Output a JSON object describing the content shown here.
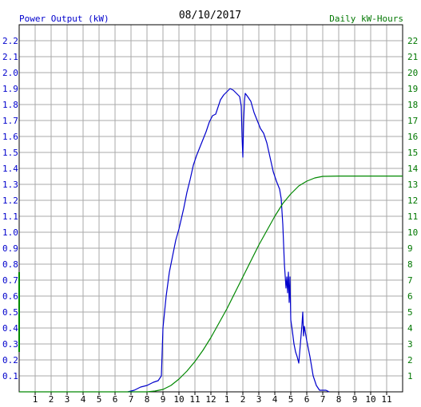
{
  "chart_data": {
    "type": "line",
    "title": "08/10/2017",
    "ylabel_left": "Power Output (kW)",
    "ylabel_right": "Daily kW-Hours",
    "xlabel": "",
    "grid": true,
    "colors": {
      "left_axis": "#0000cc",
      "right_axis": "#007700",
      "power_line": "#0000cc",
      "energy_line": "#008800",
      "grid": "#aaaaaa",
      "frame": "#000000"
    },
    "x_ticks": [
      "1",
      "2",
      "3",
      "4",
      "5",
      "6",
      "7",
      "8",
      "9",
      "10",
      "11",
      "12",
      "1",
      "2",
      "3",
      "4",
      "5",
      "6",
      "7",
      "8",
      "9",
      "10",
      "11"
    ],
    "x_range_hours": [
      0,
      24
    ],
    "ylim_left": [
      0,
      2.3
    ],
    "ylim_right": [
      0,
      23
    ],
    "y_ticks_left": [
      "0.1",
      "0.2",
      "0.3",
      "0.4",
      "0.5",
      "0.6",
      "0.7",
      "0.8",
      "0.9",
      "1.0",
      "1.1",
      "1.2",
      "1.3",
      "1.4",
      "1.5",
      "1.6",
      "1.7",
      "1.8",
      "1.9",
      "2.0",
      "2.1",
      "2.2"
    ],
    "y_ticks_right": [
      "1",
      "2",
      "3",
      "4",
      "5",
      "6",
      "7",
      "8",
      "9",
      "10",
      "11",
      "12",
      "13",
      "14",
      "15",
      "16",
      "17",
      "18",
      "19",
      "20",
      "21",
      "22"
    ],
    "series": [
      {
        "axis": "left",
        "points": [
          [
            6.8,
            0
          ],
          [
            7.2,
            0.01
          ],
          [
            7.6,
            0.03
          ],
          [
            8.0,
            0.04
          ],
          [
            8.4,
            0.06
          ],
          [
            8.7,
            0.07
          ],
          [
            8.9,
            0.1
          ],
          [
            9.0,
            0.4
          ],
          [
            9.2,
            0.6
          ],
          [
            9.4,
            0.75
          ],
          [
            9.6,
            0.85
          ],
          [
            9.8,
            0.95
          ],
          [
            10.0,
            1.02
          ],
          [
            10.3,
            1.15
          ],
          [
            10.5,
            1.25
          ],
          [
            10.7,
            1.33
          ],
          [
            10.9,
            1.42
          ],
          [
            11.1,
            1.48
          ],
          [
            11.3,
            1.53
          ],
          [
            11.5,
            1.58
          ],
          [
            11.7,
            1.63
          ],
          [
            11.9,
            1.69
          ],
          [
            12.1,
            1.73
          ],
          [
            12.3,
            1.74
          ],
          [
            12.4,
            1.77
          ],
          [
            12.6,
            1.83
          ],
          [
            12.8,
            1.86
          ],
          [
            13.0,
            1.88
          ],
          [
            13.2,
            1.9
          ],
          [
            13.4,
            1.89
          ],
          [
            13.6,
            1.87
          ],
          [
            13.8,
            1.85
          ],
          [
            13.9,
            1.79
          ],
          [
            13.95,
            1.6
          ],
          [
            14.0,
            1.47
          ],
          [
            14.05,
            1.7
          ],
          [
            14.1,
            1.82
          ],
          [
            14.15,
            1.87
          ],
          [
            14.3,
            1.85
          ],
          [
            14.5,
            1.82
          ],
          [
            14.7,
            1.75
          ],
          [
            14.9,
            1.7
          ],
          [
            15.1,
            1.65
          ],
          [
            15.3,
            1.62
          ],
          [
            15.5,
            1.56
          ],
          [
            15.7,
            1.47
          ],
          [
            15.9,
            1.38
          ],
          [
            16.1,
            1.32
          ],
          [
            16.3,
            1.27
          ],
          [
            16.4,
            1.21
          ],
          [
            16.5,
            1.05
          ],
          [
            16.6,
            0.8
          ],
          [
            16.7,
            0.65
          ],
          [
            16.75,
            0.72
          ],
          [
            16.8,
            0.62
          ],
          [
            16.85,
            0.75
          ],
          [
            16.9,
            0.56
          ],
          [
            16.95,
            0.72
          ],
          [
            17.0,
            0.45
          ],
          [
            17.1,
            0.38
          ],
          [
            17.2,
            0.3
          ],
          [
            17.3,
            0.25
          ],
          [
            17.4,
            0.22
          ],
          [
            17.5,
            0.18
          ],
          [
            17.6,
            0.3
          ],
          [
            17.7,
            0.42
          ],
          [
            17.75,
            0.5
          ],
          [
            17.8,
            0.35
          ],
          [
            17.85,
            0.41
          ],
          [
            17.9,
            0.38
          ],
          [
            18.0,
            0.32
          ],
          [
            18.2,
            0.22
          ],
          [
            18.4,
            0.1
          ],
          [
            18.6,
            0.04
          ],
          [
            18.8,
            0.01
          ],
          [
            19.2,
            0.01
          ],
          [
            19.4,
            0
          ]
        ]
      },
      {
        "axis": "right",
        "points": [
          [
            0,
            0
          ],
          [
            8.0,
            0
          ],
          [
            8.5,
            0.05
          ],
          [
            9.0,
            0.15
          ],
          [
            9.5,
            0.4
          ],
          [
            10.0,
            0.8
          ],
          [
            10.5,
            1.3
          ],
          [
            11.0,
            1.9
          ],
          [
            11.5,
            2.6
          ],
          [
            12.0,
            3.4
          ],
          [
            12.5,
            4.3
          ],
          [
            13.0,
            5.2
          ],
          [
            13.5,
            6.2
          ],
          [
            14.0,
            7.2
          ],
          [
            14.5,
            8.2
          ],
          [
            15.0,
            9.2
          ],
          [
            15.5,
            10.1
          ],
          [
            16.0,
            11.0
          ],
          [
            16.5,
            11.8
          ],
          [
            17.0,
            12.4
          ],
          [
            17.5,
            12.9
          ],
          [
            18.0,
            13.2
          ],
          [
            18.5,
            13.4
          ],
          [
            19.0,
            13.5
          ],
          [
            20.0,
            13.52
          ],
          [
            21.0,
            13.52
          ],
          [
            22.0,
            13.52
          ],
          [
            23.0,
            13.52
          ],
          [
            24.0,
            13.52
          ]
        ]
      },
      {
        "axis": "left",
        "points": [
          [
            0,
            0.75
          ],
          [
            0,
            0.25
          ]
        ]
      }
    ]
  }
}
